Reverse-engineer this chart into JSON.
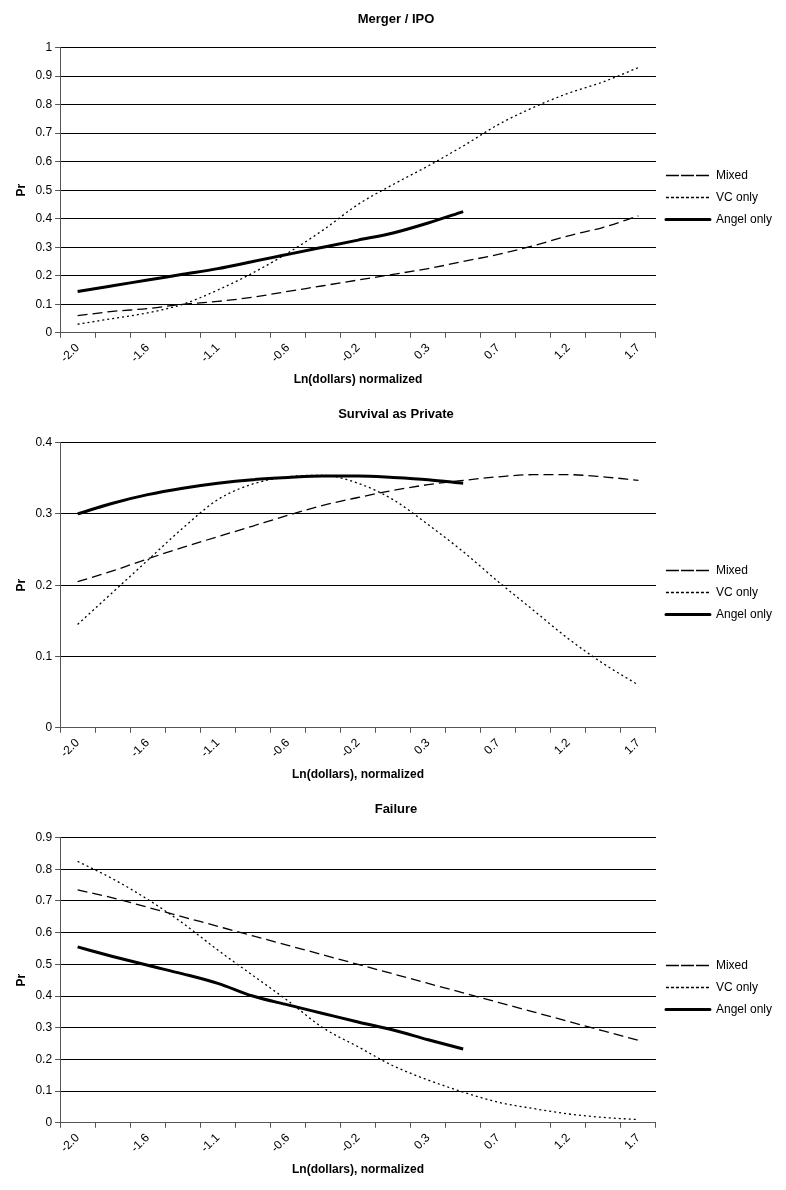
{
  "chart_data": [
    {
      "type": "line",
      "title": "Merger / IPO",
      "xlabel": "Ln(dollars) normalized",
      "ylabel": "Pr",
      "categories": [
        "-2.0",
        null,
        "-1.6",
        null,
        "-1.1",
        null,
        "-0.6",
        null,
        "-0.2",
        null,
        "0.3",
        null,
        "0.7",
        null,
        "1.2",
        null,
        "1.7"
      ],
      "series": [
        {
          "name": "Mixed",
          "color": "#000000",
          "line_style": "dashed",
          "values": [
            0.06,
            0.075,
            0.085,
            0.1,
            0.11,
            0.125,
            0.145,
            0.165,
            0.185,
            0.205,
            0.225,
            0.25,
            0.275,
            0.305,
            0.34,
            0.37,
            0.41
          ]
        },
        {
          "name": "VC only",
          "color": "#000000",
          "line_style": "dotted",
          "values": [
            0.03,
            0.05,
            0.07,
            0.1,
            0.15,
            0.21,
            0.28,
            0.36,
            0.45,
            0.52,
            0.585,
            0.655,
            0.73,
            0.79,
            0.84,
            0.88,
            0.93
          ]
        },
        {
          "name": "Angel only",
          "color": "#000000",
          "line_style": "solid",
          "values": [
            0.145,
            0.165,
            0.185,
            0.205,
            0.225,
            0.25,
            0.275,
            0.3,
            0.325,
            0.35,
            0.385,
            0.425,
            null,
            null,
            null,
            null,
            null
          ]
        }
      ],
      "ylim": [
        0,
        1
      ],
      "yticks": [
        0,
        0.1,
        0.2,
        0.3,
        0.4,
        0.5,
        0.6,
        0.7,
        0.8,
        0.9,
        1
      ],
      "grid": "y",
      "legend": "right"
    },
    {
      "type": "line",
      "title": "Survival as Private",
      "xlabel": "Ln(dollars), normalized",
      "ylabel": "Pr",
      "categories": [
        "-2.0",
        null,
        "-1.6",
        null,
        "-1.1",
        null,
        "-0.6",
        null,
        "-0.2",
        null,
        "0.3",
        null,
        "0.7",
        null,
        "1.2",
        null,
        "1.7"
      ],
      "series": [
        {
          "name": "Mixed",
          "color": "#000000",
          "line_style": "dashed",
          "values": [
            0.205,
            0.22,
            0.237,
            0.253,
            0.268,
            0.283,
            0.298,
            0.312,
            0.323,
            0.333,
            0.341,
            0.347,
            0.352,
            0.355,
            0.355,
            0.352,
            0.347
          ]
        },
        {
          "name": "VC only",
          "color": "#000000",
          "line_style": "dotted",
          "values": [
            0.145,
            0.19,
            0.235,
            0.28,
            0.32,
            0.342,
            0.352,
            0.354,
            0.343,
            0.32,
            0.285,
            0.247,
            0.205,
            0.165,
            0.125,
            0.09,
            0.06
          ]
        },
        {
          "name": "Angel only",
          "color": "#000000",
          "line_style": "solid",
          "values": [
            0.3,
            0.315,
            0.327,
            0.336,
            0.343,
            0.348,
            0.351,
            0.353,
            0.353,
            0.351,
            0.348,
            0.343,
            null,
            null,
            null,
            null,
            null
          ]
        }
      ],
      "ylim": [
        0,
        0.4
      ],
      "yticks": [
        0,
        0.1,
        0.2,
        0.3,
        0.4
      ],
      "grid": "y",
      "legend": "right"
    },
    {
      "type": "line",
      "title": "Failure",
      "xlabel": "Ln(dollars), normalized",
      "ylabel": "Pr",
      "categories": [
        "-2.0",
        null,
        "-1.6",
        null,
        "-1.1",
        null,
        "-0.6",
        null,
        "-0.2",
        null,
        "0.3",
        null,
        "0.7",
        null,
        "1.2",
        null,
        "1.7"
      ],
      "series": [
        {
          "name": "Mixed",
          "color": "#000000",
          "line_style": "dashed",
          "values": [
            0.735,
            0.71,
            0.68,
            0.65,
            0.62,
            0.59,
            0.56,
            0.53,
            0.5,
            0.47,
            0.44,
            0.41,
            0.38,
            0.35,
            0.32,
            0.29,
            0.26
          ]
        },
        {
          "name": "VC only",
          "color": "#000000",
          "line_style": "dotted",
          "values": [
            0.825,
            0.77,
            0.705,
            0.63,
            0.545,
            0.465,
            0.385,
            0.3,
            0.24,
            0.18,
            0.135,
            0.097,
            0.065,
            0.045,
            0.028,
            0.017,
            0.01
          ]
        },
        {
          "name": "Angel only",
          "color": "#000000",
          "line_style": "solid",
          "values": [
            0.555,
            0.525,
            0.497,
            0.47,
            0.44,
            0.4,
            0.372,
            0.345,
            0.318,
            0.293,
            0.262,
            0.233,
            null,
            null,
            null,
            null,
            null
          ]
        }
      ],
      "ylim": [
        0,
        0.9
      ],
      "yticks": [
        0,
        0.1,
        0.2,
        0.3,
        0.4,
        0.5,
        0.6,
        0.7,
        0.8,
        0.9
      ],
      "grid": "y",
      "legend": "right"
    }
  ]
}
